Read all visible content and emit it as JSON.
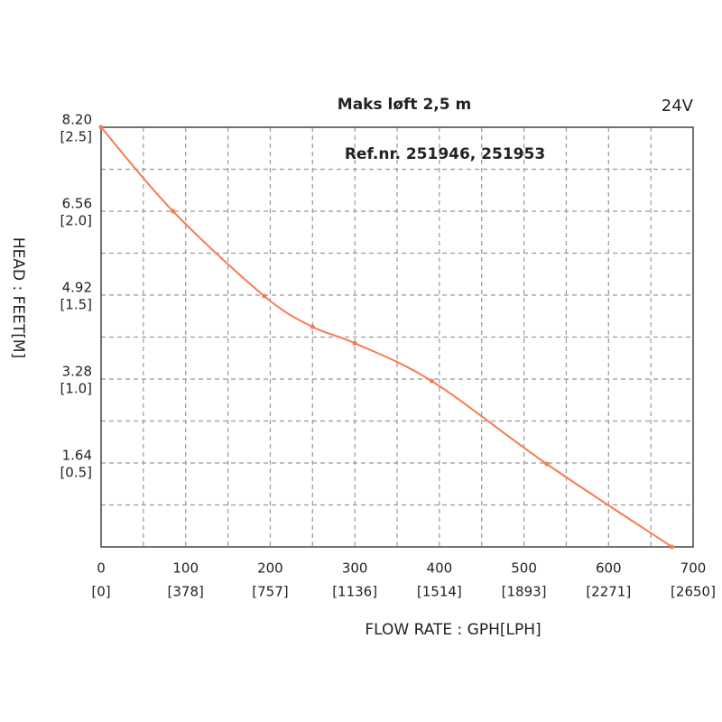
{
  "chart_data": {
    "type": "line",
    "title": "Maks løft 2,5 m",
    "subtitle": "Ref.nr. 251946, 251953",
    "annotation": "24V",
    "x_label": "FLOW RATE : GPH[LPH]",
    "y_label": "HEAD : FEET[M]",
    "x": [
      0,
      85,
      193,
      250,
      300,
      391,
      527,
      675
    ],
    "series": [
      {
        "name": "24V",
        "color": "#f57c52",
        "values": [
          8.2,
          6.56,
          4.9,
          4.3,
          3.98,
          3.24,
          1.62,
          0
        ]
      }
    ],
    "xlim": [
      0,
      700
    ],
    "ylim": [
      0,
      8.2
    ],
    "xticks": [
      0,
      100,
      200,
      300,
      400,
      500,
      600,
      700
    ],
    "xticks_lph": [
      "[0]",
      "[378]",
      "[757]",
      "[1136]",
      "[1514]",
      "[1893]",
      "[2271]",
      "[2650]"
    ],
    "yticks": [
      {
        "value": 1.64,
        "label": "1.64"
      },
      {
        "value": 3.28,
        "label": "3.28"
      },
      {
        "value": 4.92,
        "label": "4.92"
      },
      {
        "value": 6.56,
        "label": "6.56"
      },
      {
        "value": 8.2,
        "label": "8.20"
      }
    ],
    "yticks_m": [
      "[0.5]",
      "[1.0]",
      "[1.5]",
      "[2.0]",
      "[2.5]"
    ],
    "grid": true
  }
}
